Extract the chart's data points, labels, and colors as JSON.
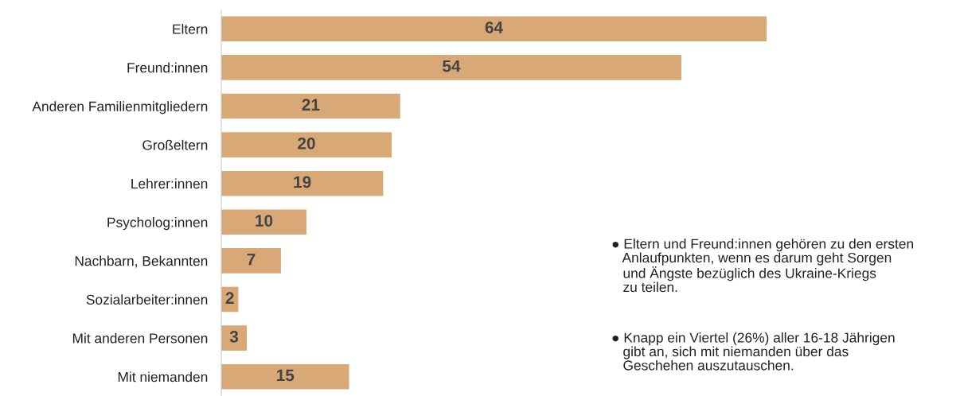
{
  "chart_data": {
    "type": "bar",
    "orientation": "horizontal",
    "categories": [
      "Eltern",
      "Freund:innen",
      "Anderen Familienmitgliedern",
      "Großeltern",
      "Lehrer:innen",
      "Psycholog:innen",
      "Nachbarn, Bekannten",
      "Sozialarbeiter:innen",
      "Mit anderen Personen",
      "Mit niemanden"
    ],
    "values": [
      64,
      54,
      21,
      20,
      19,
      10,
      7,
      2,
      3,
      15
    ],
    "color": "#d9a877",
    "data_labels": true,
    "tick_labels": "y",
    "grid": false,
    "legend": false,
    "annotations": [
      "● Eltern und Freund:innen gehören zu den ersten\n   Anlaufpunkten, wenn es darum geht Sorgen\n   und Ängste bezüglich des Ukraine-Kriegs\n   zu teilen.",
      "● Knapp ein Viertel (26%) aller 16-18 Jährigen\n   gibt an, sich mit niemanden über das\n   Geschehen auszutauschen."
    ]
  }
}
